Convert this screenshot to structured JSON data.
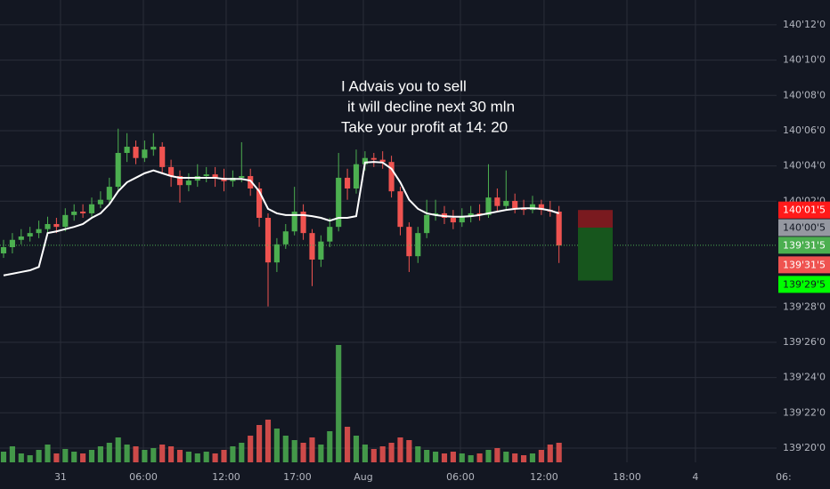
{
  "chart_data": {
    "type": "candlestick",
    "up_color": "#4caf50",
    "down_color": "#ef5350",
    "grid": true,
    "xlim": [
      -0.404,
      87.68
    ],
    "xticks": [
      {
        "value": 6.46,
        "label": "31"
      },
      {
        "value": 15.86,
        "label": "06:00"
      },
      {
        "value": 25.25,
        "label": "12:00"
      },
      {
        "value": 33.33,
        "label": "17:00"
      },
      {
        "value": 40.81,
        "label": "Aug"
      },
      {
        "value": 51.82,
        "label": "06:00"
      },
      {
        "value": 61.31,
        "label": "12:00"
      },
      {
        "value": 70.71,
        "label": "18:00"
      },
      {
        "value": 78.48,
        "label": "4"
      },
      {
        "value": 88.48,
        "label": "06:"
      }
    ],
    "ylim": [
      139.584,
      140.419
    ],
    "yticks": [
      {
        "value": 140.375,
        "label": "140'12'0"
      },
      {
        "value": 140.3125,
        "label": "140'10'0"
      },
      {
        "value": 140.25,
        "label": "140'08'0"
      },
      {
        "value": 140.1875,
        "label": "140'06'0"
      },
      {
        "value": 140.125,
        "label": "140'04'0"
      },
      {
        "value": 140.0625,
        "label": "140'02'0"
      },
      {
        "value": 139.875,
        "label": "139'28'0"
      },
      {
        "value": 139.8125,
        "label": "139'26'0"
      },
      {
        "value": 139.75,
        "label": "139'24'0"
      },
      {
        "value": 139.6875,
        "label": "139'22'0"
      },
      {
        "value": 139.625,
        "label": "139'20'0"
      }
    ],
    "open": [
      139.97,
      139.981,
      139.994,
      140.0,
      140.006,
      140.013,
      140.022,
      140.017,
      140.038,
      140.044,
      140.041,
      140.057,
      140.065,
      140.088,
      140.148,
      140.159,
      140.139,
      140.154,
      140.159,
      140.123,
      140.107,
      140.091,
      140.099,
      140.107,
      140.11,
      140.104,
      140.098,
      140.104,
      140.107,
      140.085,
      140.033,
      139.954,
      139.986,
      140.009,
      140.044,
      140.006,
      139.959,
      139.991,
      140.017,
      140.104,
      140.085,
      140.128,
      140.139,
      140.136,
      140.132,
      140.08,
      140.017,
      139.965,
      140.006,
      140.038,
      140.041,
      140.033,
      140.025,
      140.035,
      140.041,
      140.038,
      140.069,
      140.054,
      140.063,
      140.05,
      140.047,
      140.057,
      140.047,
      140.044
    ],
    "high": [
      139.994,
      140.006,
      140.013,
      140.017,
      140.028,
      140.035,
      140.033,
      140.05,
      140.057,
      140.057,
      140.069,
      140.08,
      140.104,
      140.191,
      140.183,
      140.17,
      140.17,
      140.183,
      140.167,
      140.136,
      140.117,
      140.112,
      140.128,
      140.123,
      140.123,
      140.12,
      140.117,
      140.167,
      140.12,
      140.096,
      140.041,
      139.997,
      140.022,
      140.088,
      140.057,
      140.013,
      140.002,
      140.033,
      140.148,
      140.12,
      140.154,
      140.151,
      140.148,
      140.151,
      140.143,
      140.088,
      140.025,
      140.017,
      140.065,
      140.065,
      140.054,
      140.047,
      140.05,
      140.054,
      140.057,
      140.128,
      140.085,
      140.117,
      140.076,
      140.065,
      140.072,
      140.065,
      140.063,
      140.054
    ],
    "low": [
      139.962,
      139.97,
      139.986,
      139.991,
      139.997,
      140.006,
      140.006,
      140.009,
      140.028,
      140.033,
      140.035,
      140.05,
      140.057,
      140.08,
      140.132,
      140.128,
      140.132,
      140.143,
      140.112,
      140.088,
      140.06,
      140.08,
      140.088,
      140.096,
      140.088,
      140.08,
      140.088,
      140.096,
      140.072,
      140.017,
      139.876,
      139.937,
      139.978,
      140.002,
      139.994,
      139.912,
      139.946,
      139.981,
      140.009,
      140.065,
      140.076,
      140.117,
      140.123,
      140.12,
      140.069,
      140.002,
      139.937,
      139.953,
      139.997,
      140.028,
      140.022,
      140.013,
      140.017,
      140.025,
      140.028,
      140.033,
      140.044,
      140.047,
      140.041,
      140.038,
      140.041,
      140.038,
      140.035,
      139.953
    ],
    "close": [
      139.981,
      139.994,
      140.0,
      140.006,
      140.013,
      140.022,
      140.017,
      140.038,
      140.044,
      140.041,
      140.057,
      140.065,
      140.088,
      140.148,
      140.159,
      140.139,
      140.154,
      140.159,
      140.123,
      140.107,
      140.091,
      140.099,
      140.107,
      140.11,
      140.104,
      140.098,
      140.104,
      140.107,
      140.085,
      140.033,
      139.954,
      139.986,
      140.009,
      140.044,
      140.006,
      139.959,
      139.991,
      140.017,
      140.104,
      140.085,
      140.128,
      140.139,
      140.136,
      140.132,
      140.08,
      140.017,
      139.965,
      140.006,
      140.038,
      140.041,
      140.033,
      140.025,
      140.035,
      140.041,
      140.038,
      140.069,
      140.054,
      140.063,
      140.05,
      140.047,
      140.057,
      140.047,
      140.044,
      139.984
    ],
    "volume": [
      12,
      18,
      10,
      8,
      14,
      20,
      10,
      15,
      12,
      10,
      14,
      18,
      22,
      28,
      20,
      18,
      14,
      16,
      20,
      18,
      14,
      12,
      10,
      12,
      10,
      14,
      18,
      22,
      30,
      42,
      48,
      38,
      30,
      25,
      22,
      28,
      20,
      35,
      132,
      40,
      30,
      20,
      15,
      18,
      22,
      28,
      25,
      18,
      14,
      12,
      10,
      12,
      10,
      8,
      10,
      14,
      16,
      12,
      10,
      8,
      10,
      14,
      20,
      22
    ],
    "ma_line": {
      "color": "#ffffff",
      "values": [
        139.931,
        139.934,
        139.937,
        139.94,
        139.946,
        140.006,
        140.009,
        140.013,
        140.017,
        140.022,
        140.033,
        140.041,
        140.057,
        140.08,
        140.096,
        140.104,
        140.112,
        140.117,
        140.112,
        140.107,
        140.104,
        140.104,
        140.104,
        140.104,
        140.104,
        140.102,
        140.102,
        140.102,
        140.099,
        140.08,
        140.049,
        140.041,
        140.038,
        140.038,
        140.038,
        140.036,
        140.033,
        140.028,
        140.033,
        140.033,
        140.036,
        140.131,
        140.132,
        140.131,
        140.12,
        140.096,
        140.065,
        140.049,
        140.041,
        140.038,
        140.036,
        140.035,
        140.035,
        140.036,
        140.038,
        140.041,
        140.044,
        140.047,
        140.049,
        140.05,
        140.05,
        140.049,
        140.046,
        140.041
      ]
    },
    "current_price": 139.984375,
    "position": {
      "stop": {
        "value": 140.046875,
        "label": "140'01'5"
      },
      "entry": {
        "value": 140.015625,
        "label": "140'00'5"
      },
      "target": {
        "value": 139.921875,
        "label": "139'29'5"
      },
      "loss_color": "#7a1a1f",
      "profit_color": "#17561d"
    },
    "price_labels": [
      {
        "value": 140.046875,
        "label": "140'01'5",
        "color": "#ff1a1a",
        "text_color": "#ffffff"
      },
      {
        "value": 140.015625,
        "label": "140'00'5",
        "color": "#9598a1",
        "text_color": "#131722"
      },
      {
        "value": 139.984375,
        "label": "139'31'5",
        "color": "#4caf50",
        "text_color": "#ffffff"
      },
      {
        "value": 139.984375,
        "label": "139'31'5",
        "color": "#ef5350",
        "text_color": "#ffffff"
      },
      {
        "value": 139.921875,
        "label": "139'29'5",
        "color": "#00ff00",
        "text_color": "#131722"
      }
    ],
    "annotations": [
      "I Advais you to sell",
      "it will decline next 30 mln",
      "Take your profit at 14: 20"
    ]
  }
}
